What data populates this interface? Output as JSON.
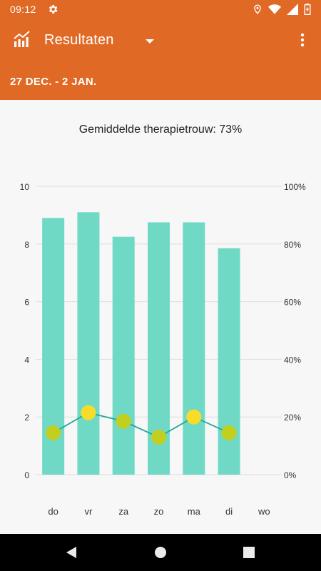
{
  "status_bar": {
    "time": "09:12",
    "icons": [
      "gear-icon",
      "location-icon",
      "wifi-icon",
      "signal-icon",
      "battery-icon"
    ]
  },
  "app_bar": {
    "title": "Resultaten",
    "date_range": "27 DEC. - 2 JAN.",
    "color": "#e06a25"
  },
  "summary": {
    "adherence_text": "Gemiddelde therapietrouw: 73%"
  },
  "chart_data": {
    "type": "bar",
    "categories": [
      "do",
      "vr",
      "za",
      "zo",
      "ma",
      "di",
      "wo"
    ],
    "series": [
      {
        "type": "bar",
        "axis": "left",
        "values": [
          8.9,
          9.1,
          8.25,
          8.75,
          8.75,
          7.85,
          null
        ],
        "color": "#6fd9c5"
      },
      {
        "type": "line",
        "axis": "right",
        "values": [
          14.5,
          21.5,
          18.5,
          13,
          20,
          14.5,
          null
        ],
        "color": "#26a69a",
        "point_colors": [
          "#c2cf1e",
          "#f7dc2a",
          "#c2cf1e",
          "#c2cf1e",
          "#f7dc2a",
          "#c2cf1e",
          null
        ]
      }
    ],
    "ylim_left": [
      0,
      10
    ],
    "yticks_left": [
      "0",
      "2",
      "4",
      "6",
      "8",
      "10"
    ],
    "ylim_right": [
      0,
      100
    ],
    "yticks_right": [
      "0%",
      "20%",
      "40%",
      "60%",
      "80%",
      "100%"
    ],
    "grid": true
  },
  "nav_bar": {
    "buttons": [
      "back-icon",
      "home-icon",
      "recents-icon"
    ]
  }
}
